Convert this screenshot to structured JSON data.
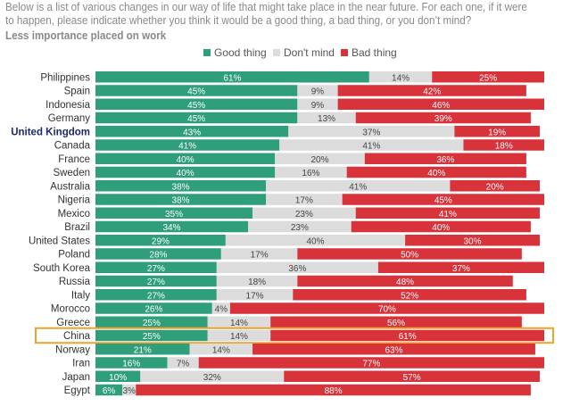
{
  "question": "Below is a list of various changes in our way of life that might take place in the near future. For each one, if it were to happen, please indicate whether you think it would be a good thing, a bad thing, or you don’t mind?",
  "subtitle": "Less importance placed on work",
  "colors": {
    "good": "#2f9e7b",
    "dont_mind": "#dcdcdc",
    "bad": "#d8333b",
    "highlight": "#f0a12c",
    "label_on_dark": "#ffffff",
    "label_on_light": "#444444"
  },
  "chart_data": {
    "type": "bar",
    "orientation": "horizontal-stacked-100",
    "title": "Less importance placed on work",
    "legend": [
      "Good thing",
      "Don't mind",
      "Bad thing"
    ],
    "legend_position": "top-center",
    "categories": [
      "Philippines",
      "Spain",
      "Indonesia",
      "Germany",
      "United Kingdom",
      "Canada",
      "France",
      "Sweden",
      "Australia",
      "Nigeria",
      "Mexico",
      "Brazil",
      "United States",
      "Poland",
      "South Korea",
      "Russia",
      "Italy",
      "Morocco",
      "Greece",
      "China",
      "Norway",
      "Iran",
      "Japan",
      "Egypt"
    ],
    "bold_category": "United Kingdom",
    "highlight_category": "China",
    "series": [
      {
        "name": "Good thing",
        "values": [
          61,
          45,
          45,
          45,
          43,
          41,
          40,
          40,
          38,
          38,
          35,
          34,
          29,
          28,
          27,
          27,
          27,
          26,
          25,
          25,
          21,
          16,
          10,
          6
        ]
      },
      {
        "name": "Don't mind",
        "values": [
          14,
          9,
          9,
          13,
          37,
          41,
          20,
          16,
          41,
          17,
          23,
          23,
          40,
          17,
          36,
          18,
          17,
          4,
          14,
          14,
          14,
          7,
          32,
          3
        ]
      },
      {
        "name": "Bad thing",
        "values": [
          25,
          42,
          46,
          39,
          19,
          18,
          36,
          40,
          20,
          45,
          41,
          40,
          30,
          50,
          37,
          48,
          52,
          70,
          56,
          61,
          63,
          77,
          57,
          88
        ]
      }
    ],
    "xlim": [
      0,
      100
    ],
    "value_suffix": "%"
  }
}
